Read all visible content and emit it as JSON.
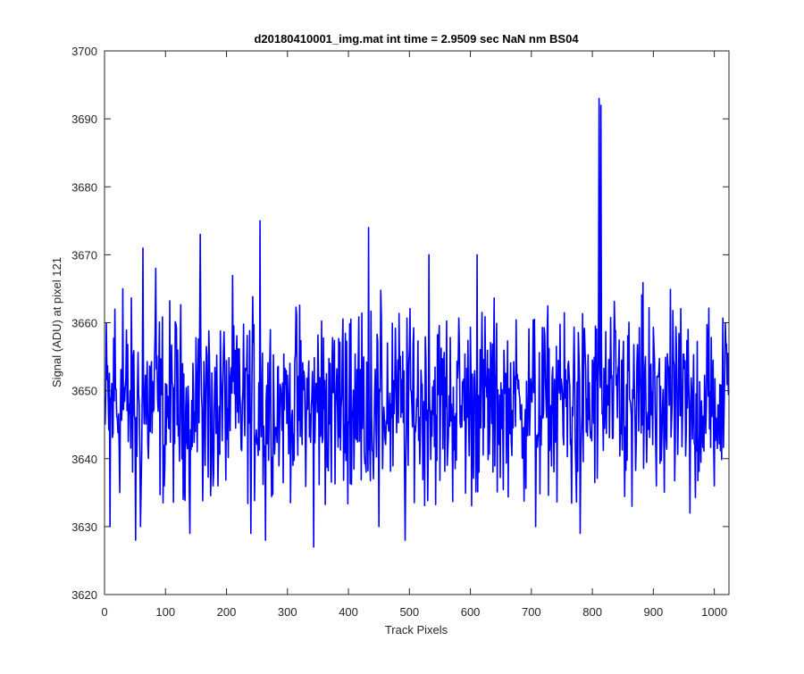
{
  "window": {
    "background_color": "#ffffff"
  },
  "chart_data": {
    "type": "line",
    "title": "d20180410001_img.mat int time = 2.9509 sec  NaN nm BS04",
    "xlabel": "Track Pixels",
    "ylabel": "Signal (ADU) at pixel 121",
    "xlim": [
      0,
      1024
    ],
    "ylim": [
      3620,
      3700
    ],
    "xticks": [
      0,
      100,
      200,
      300,
      400,
      500,
      600,
      700,
      800,
      900,
      1000
    ],
    "yticks": [
      3620,
      3630,
      3640,
      3650,
      3660,
      3670,
      3680,
      3690,
      3700
    ],
    "grid": false,
    "legend": "none",
    "series": [
      {
        "color": "#0000ff",
        "x_start": 1,
        "x_step": 1,
        "baseline": 3648,
        "description_points": [
          [
            1,
            3645
          ],
          [
            9,
            3630
          ],
          [
            17,
            3662
          ],
          [
            30,
            3665
          ],
          [
            51,
            3628
          ],
          [
            59,
            3630
          ],
          [
            63,
            3671
          ],
          [
            84,
            3668
          ],
          [
            98,
            3636
          ],
          [
            140,
            3629
          ],
          [
            157,
            3673
          ],
          [
            186,
            3636
          ],
          [
            240,
            3629
          ],
          [
            255,
            3675
          ],
          [
            264,
            3628
          ],
          [
            343,
            3627
          ],
          [
            358,
            3643
          ],
          [
            433,
            3674
          ],
          [
            450,
            3630
          ],
          [
            493,
            3628
          ],
          [
            532,
            3670
          ],
          [
            611,
            3670
          ],
          [
            707,
            3630
          ],
          [
            780,
            3629
          ],
          [
            811,
            3693
          ],
          [
            814,
            3692
          ],
          [
            865,
            3633
          ],
          [
            905,
            3636
          ],
          [
            960,
            3632
          ],
          [
            1000,
            3636
          ],
          [
            1018,
            3660
          ],
          [
            1024,
            3650
          ]
        ]
      }
    ]
  }
}
